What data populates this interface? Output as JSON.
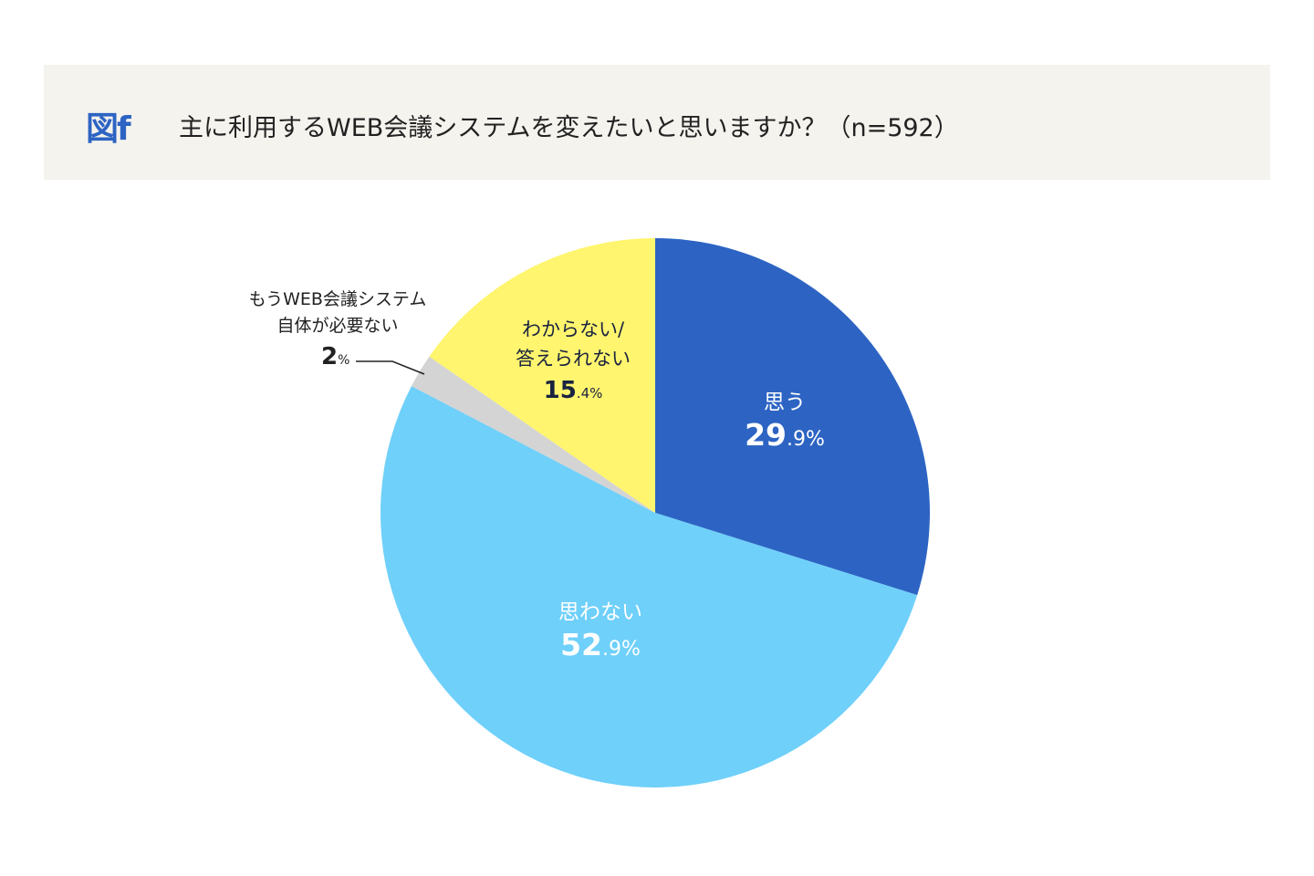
{
  "header": {
    "figure_label": "図f",
    "title": "主に利用するWEB会議システムを変えたいと思いますか？（n=592）"
  },
  "chart_data": {
    "type": "pie",
    "title": "主に利用するWEB会議システムを変えたいと思いますか？（n=592）",
    "start": "top",
    "direction": "clockwise",
    "slices": [
      {
        "label": "思う",
        "value": 29.9,
        "int": "29",
        "dec": ".9%",
        "color": "#2D64C3"
      },
      {
        "label": "思わない",
        "value": 52.9,
        "int": "52",
        "dec": ".9%",
        "color": "#6FD0FA"
      },
      {
        "label_line1": "もうWEB会議システム",
        "label_line2": "自体が必要ない",
        "value": 2,
        "int": "2",
        "dec": "%",
        "color": "#D4D4D4"
      },
      {
        "label_line1": "わからない/",
        "label_line2": "答えられない",
        "value": 15.4,
        "int": "15",
        "dec": ".4%",
        "color": "#FFF56E"
      }
    ]
  }
}
